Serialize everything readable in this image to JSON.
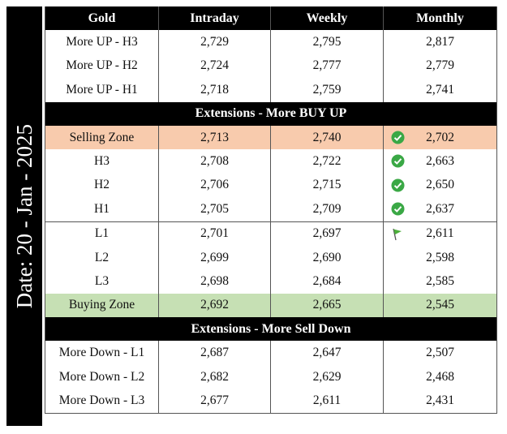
{
  "date_label": "Date: 20 - Jan - 2025",
  "table": {
    "header": [
      "Gold",
      "Intraday",
      "Weekly",
      "Monthly"
    ],
    "rows": [
      [
        "More UP - H3",
        "2,729",
        "2,795",
        "2,817"
      ],
      [
        "More UP - H2",
        "2,724",
        "2,777",
        "2,779"
      ],
      [
        "More UP - H1",
        "2,718",
        "2,759",
        "2,741"
      ],
      [
        "Extensions - More BUY UP"
      ],
      [
        "Selling Zone",
        "2,713",
        "2,740",
        "2,702"
      ],
      [
        "H3",
        "2,708",
        "2,722",
        "2,663"
      ],
      [
        "H2",
        "2,706",
        "2,715",
        "2,650"
      ],
      [
        "H1",
        "2,705",
        "2,709",
        "2,637"
      ],
      [
        "L1",
        "2,701",
        "2,697",
        "2,611"
      ],
      [
        "L2",
        "2,699",
        "2,690",
        "2,598"
      ],
      [
        "L3",
        "2,698",
        "2,684",
        "2,585"
      ],
      [
        "Buying Zone",
        "2,692",
        "2,665",
        "2,545"
      ],
      [
        "Extensions - More Sell Down"
      ],
      [
        "More Down - L1",
        "2,687",
        "2,647",
        "2,507"
      ],
      [
        "More Down - L2",
        "2,682",
        "2,629",
        "2,468"
      ],
      [
        "More Down - L3",
        "2,677",
        "2,611",
        "2,431"
      ]
    ]
  }
}
